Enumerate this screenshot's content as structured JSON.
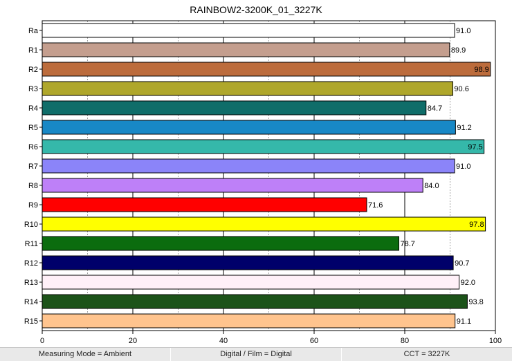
{
  "chart_data": {
    "type": "bar",
    "orientation": "horizontal",
    "title": "RAINBOW2-3200K_01_3227K",
    "categories": [
      "Ra",
      "R1",
      "R2",
      "R3",
      "R4",
      "R5",
      "R6",
      "R7",
      "R8",
      "R9",
      "R10",
      "R11",
      "R12",
      "R13",
      "R14",
      "R15"
    ],
    "values": [
      91.0,
      89.9,
      98.9,
      90.6,
      84.7,
      91.2,
      97.5,
      91.0,
      84.0,
      71.6,
      97.8,
      78.7,
      90.7,
      92.0,
      93.8,
      91.1
    ],
    "value_labels": [
      "91.0",
      "89.9",
      "98.9",
      "90.6",
      "84.7",
      "91.2",
      "97.5",
      "91.0",
      "84.0",
      "71.6",
      "97.8",
      "78.7",
      "90.7",
      "92.0",
      "93.8",
      "91.1"
    ],
    "colors": [
      "#ffffff",
      "#c49e8e",
      "#bc6c3c",
      "#afa72b",
      "#0f6d69",
      "#1888c6",
      "#35b8aa",
      "#8b84f9",
      "#be80f8",
      "#ff0000",
      "#ffff00",
      "#0b6c0e",
      "#00006a",
      "#fff0f8",
      "#1c5319",
      "#ffc48e"
    ],
    "xlim": [
      0,
      100
    ],
    "xticks": [
      0,
      20,
      40,
      60,
      80,
      100
    ],
    "xtick_labels": [
      "0",
      "20",
      "40",
      "60",
      "80",
      "100"
    ],
    "grid": true
  },
  "footer": {
    "measuring_mode": "Measuring Mode = Ambient",
    "digital_film": "Digital / Film = Digital",
    "cct": "CCT = 3227K"
  }
}
